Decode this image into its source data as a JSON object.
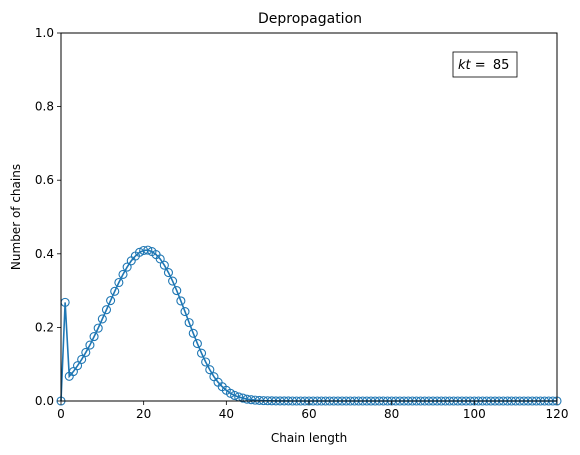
{
  "chart_data": {
    "type": "line",
    "title": "Depropagation",
    "xlabel": "Chain length",
    "ylabel": "Number of chains",
    "xlim": [
      0,
      120
    ],
    "ylim": [
      0,
      1.0
    ],
    "x_ticks": [
      "0",
      "20",
      "40",
      "60",
      "80",
      "100",
      "120"
    ],
    "y_ticks": [
      "0.0",
      "0.2",
      "0.4",
      "0.6",
      "0.8",
      "1.0"
    ],
    "grid": false,
    "annotation": {
      "var": "kt",
      "eq": " = ",
      "value": "85",
      "position": "top-right"
    },
    "series": [
      {
        "marker": "open-circle",
        "color": "#1f77b4",
        "x": [
          0,
          1,
          2,
          3,
          4,
          5,
          6,
          7,
          8,
          9,
          10,
          11,
          12,
          13,
          14,
          15,
          16,
          17,
          18,
          19,
          20,
          21,
          22,
          23,
          24,
          25,
          26,
          27,
          28,
          29,
          30,
          31,
          32,
          33,
          34,
          35,
          36,
          37,
          38,
          39,
          40,
          41,
          42,
          43,
          44,
          45,
          46,
          47,
          48,
          49,
          50,
          51,
          52,
          53,
          54,
          55,
          56,
          57,
          58,
          59,
          60,
          61,
          62,
          63,
          64,
          65,
          66,
          67,
          68,
          69,
          70,
          71,
          72,
          73,
          74,
          75,
          76,
          77,
          78,
          79,
          80,
          81,
          82,
          83,
          84,
          85,
          86,
          87,
          88,
          89,
          90,
          91,
          92,
          93,
          94,
          95,
          96,
          97,
          98,
          99,
          100,
          101,
          102,
          103,
          104,
          105,
          106,
          107,
          108,
          109,
          110,
          111,
          112,
          113,
          114,
          115,
          116,
          117,
          118,
          119,
          120
        ],
        "y": [
          0.0,
          0.268,
          0.067,
          0.08,
          0.096,
          0.113,
          0.132,
          0.152,
          0.175,
          0.198,
          0.223,
          0.248,
          0.273,
          0.298,
          0.322,
          0.344,
          0.364,
          0.381,
          0.394,
          0.404,
          0.409,
          0.41,
          0.406,
          0.398,
          0.386,
          0.369,
          0.349,
          0.326,
          0.3,
          0.272,
          0.243,
          0.213,
          0.184,
          0.156,
          0.13,
          0.106,
          0.085,
          0.066,
          0.051,
          0.039,
          0.029,
          0.021,
          0.015,
          0.011,
          0.008,
          0.005,
          0.0036,
          0.0024,
          0.0016,
          0.001,
          0.0007,
          0.0004,
          0.0003,
          0.0002,
          0.0001,
          0.0001,
          0,
          0,
          0,
          0,
          0,
          0,
          0,
          0,
          0,
          0,
          0,
          0,
          0,
          0,
          0,
          0,
          0,
          0,
          0,
          0,
          0,
          0,
          0,
          0,
          0,
          0,
          0,
          0,
          0,
          0,
          0,
          0,
          0,
          0,
          0,
          0,
          0,
          0,
          0,
          0,
          0,
          0,
          0,
          0,
          0,
          0,
          0,
          0,
          0,
          0,
          0,
          0,
          0,
          0,
          0,
          0,
          0,
          0,
          0,
          0,
          0,
          0,
          0,
          0,
          0
        ]
      }
    ]
  }
}
